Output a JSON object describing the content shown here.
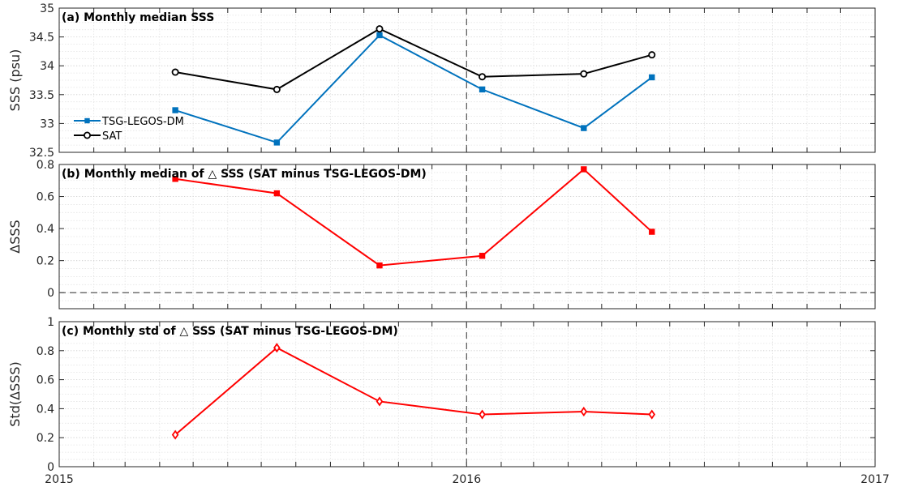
{
  "chart_data": [
    {
      "type": "line",
      "title": "(a) Monthly median SSS",
      "ylabel": "SSS (psu)",
      "xlim": [
        "2015-01-01",
        "2017-01-01"
      ],
      "ylim": [
        32.5,
        35
      ],
      "yticks": [
        32.5,
        33,
        33.5,
        34,
        34.5,
        35
      ],
      "ytick_labels": [
        "32.5",
        "33",
        "33.5",
        "34",
        "34.5",
        "35"
      ],
      "grid": true,
      "vline_x": "2016-01-01",
      "legend_position": "center-left",
      "x": [
        "2015-04-15",
        "2015-07-15",
        "2015-10-15",
        "2016-01-15",
        "2016-04-15",
        "2016-06-15"
      ],
      "series": [
        {
          "name": "TSG-LEGOS-DM",
          "color": "#0072BD",
          "marker": "square",
          "values": [
            33.23,
            32.67,
            34.53,
            33.59,
            32.92,
            33.8
          ]
        },
        {
          "name": "SAT",
          "color": "#000000",
          "marker": "circle",
          "values": [
            33.89,
            33.59,
            34.64,
            33.81,
            33.86,
            34.19
          ]
        }
      ]
    },
    {
      "type": "line",
      "title": "(b) Monthly median of △ SSS (SAT minus TSG-LEGOS-DM)",
      "ylabel": "ΔSSS",
      "xlim": [
        "2015-01-01",
        "2017-01-01"
      ],
      "ylim": [
        -0.1,
        0.8
      ],
      "yticks": [
        0,
        0.2,
        0.4,
        0.6,
        0.8
      ],
      "ytick_labels": [
        "0",
        "0.2",
        "0.4",
        "0.6",
        "0.8"
      ],
      "grid": true,
      "vline_x": "2016-01-01",
      "hline_y": 0,
      "x": [
        "2015-04-15",
        "2015-07-15",
        "2015-10-15",
        "2016-01-15",
        "2016-04-15",
        "2016-06-15"
      ],
      "series": [
        {
          "color": "#ff0000",
          "marker": "square",
          "values": [
            0.71,
            0.62,
            0.17,
            0.23,
            0.77,
            0.38
          ]
        }
      ]
    },
    {
      "type": "line",
      "title": "(c) Monthly std of △ SSS (SAT minus TSG-LEGOS-DM)",
      "ylabel": "Std(ΔSSS)",
      "xlim": [
        "2015-01-01",
        "2017-01-01"
      ],
      "ylim": [
        0,
        1
      ],
      "yticks": [
        0,
        0.2,
        0.4,
        0.6,
        0.8,
        1
      ],
      "ytick_labels": [
        "0",
        "0.2",
        "0.4",
        "0.6",
        "0.8",
        "1"
      ],
      "xticks": [
        "2015-01-01",
        "2016-01-01",
        "2017-01-01"
      ],
      "xtick_labels": [
        "2015",
        "2016",
        "2017"
      ],
      "grid": true,
      "vline_x": "2016-01-01",
      "x": [
        "2015-04-15",
        "2015-07-15",
        "2015-10-15",
        "2016-01-15",
        "2016-04-15",
        "2016-06-15"
      ],
      "series": [
        {
          "color": "#ff0000",
          "marker": "diamond",
          "values": [
            0.22,
            0.82,
            0.45,
            0.36,
            0.38,
            0.36
          ]
        }
      ]
    }
  ]
}
